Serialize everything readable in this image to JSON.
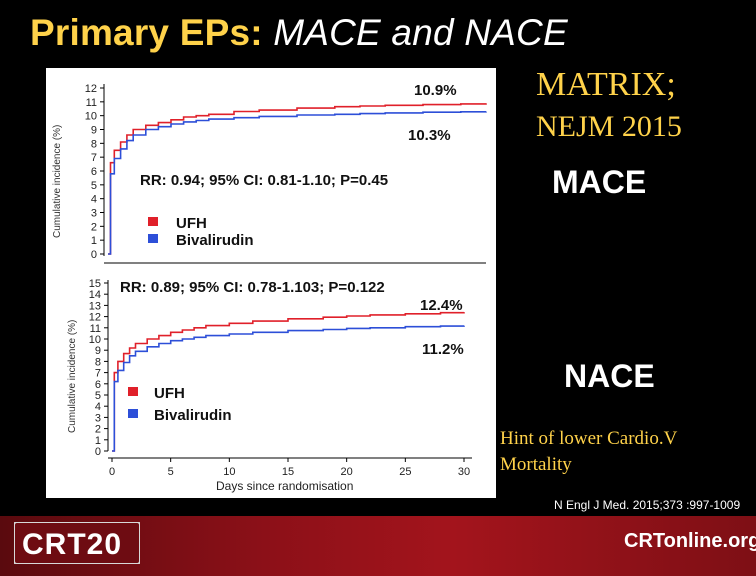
{
  "slide": {
    "title_bold": "Primary EPs:",
    "title_italic": "MACE and NACE",
    "right_top_line1": "MATRIX;",
    "right_top_line2": "NEJM 2015",
    "mace_label": "MACE",
    "nace_label": "NACE",
    "hint_line1": "Hint of lower Cardio.V",
    "hint_line2": "Mortality",
    "citation": "N Engl J Med. 2015;373 :997-1009",
    "footer_logo_left": "CRT20",
    "footer_logo_right": "CRTonline.org"
  },
  "colors": {
    "background": "#000000",
    "title_yellow": "#ffd24a",
    "ufh_red": "#e0202a",
    "bival_blue": "#2d4fd8",
    "footer_red": "#8c1018"
  },
  "chart_data": [
    {
      "type": "line",
      "name": "MACE",
      "ylabel": "Cumulative incidence (%)",
      "xlabel": "",
      "ylim": [
        0,
        12
      ],
      "yticks": [
        "0",
        "1",
        "2",
        "3",
        "4",
        "5",
        "6",
        "7",
        "8",
        "9",
        "10",
        "11",
        "12"
      ],
      "xlim": [
        0,
        30
      ],
      "stat_text": "RR: 0.94; 95% CI: 0.81-1.10; P=0.45",
      "legend": [
        "UFH",
        "Bivalirudin"
      ],
      "end_labels": [
        "10.9%",
        "10.3%"
      ],
      "series": [
        {
          "name": "UFH",
          "color": "#e0202a",
          "x": [
            0,
            0.2,
            0.5,
            1,
            1.5,
            2,
            3,
            4,
            5,
            6,
            7,
            8,
            10,
            12,
            15,
            18,
            20,
            22,
            25,
            28,
            30
          ],
          "y": [
            0,
            6.6,
            7.5,
            8.1,
            8.6,
            9.0,
            9.3,
            9.5,
            9.7,
            9.9,
            10.0,
            10.1,
            10.3,
            10.4,
            10.55,
            10.65,
            10.7,
            10.75,
            10.8,
            10.85,
            10.9
          ]
        },
        {
          "name": "Bivalirudin",
          "color": "#2d4fd8",
          "x": [
            0,
            0.2,
            0.5,
            1,
            1.5,
            2,
            3,
            4,
            5,
            6,
            7,
            8,
            10,
            12,
            15,
            18,
            20,
            22,
            25,
            28,
            30
          ],
          "y": [
            0,
            5.8,
            6.9,
            7.6,
            8.2,
            8.6,
            9.0,
            9.2,
            9.4,
            9.55,
            9.65,
            9.75,
            9.85,
            9.95,
            10.05,
            10.1,
            10.15,
            10.2,
            10.25,
            10.28,
            10.3
          ]
        }
      ]
    },
    {
      "type": "line",
      "name": "NACE",
      "ylabel": "Cumulative incidence (%)",
      "xlabel": "Days since randomisation",
      "ylim": [
        0,
        15
      ],
      "yticks": [
        "0",
        "1",
        "2",
        "3",
        "4",
        "5",
        "6",
        "7",
        "8",
        "9",
        "10",
        "11",
        "12",
        "13",
        "14",
        "15"
      ],
      "xlim": [
        0,
        30
      ],
      "xticks": [
        "0",
        "5",
        "10",
        "15",
        "20",
        "25",
        "30"
      ],
      "stat_text": "RR: 0.89; 95% CI: 0.78-1.103; P=0.122",
      "legend": [
        "UFH",
        "Bivalirudin"
      ],
      "end_labels": [
        "12.4%",
        "11.2%"
      ],
      "series": [
        {
          "name": "UFH",
          "color": "#e0202a",
          "x": [
            0,
            0.2,
            0.5,
            1,
            1.5,
            2,
            3,
            4,
            5,
            6,
            7,
            8,
            10,
            12,
            15,
            18,
            20,
            22,
            25,
            28,
            30
          ],
          "y": [
            0,
            7.0,
            8.0,
            8.7,
            9.2,
            9.6,
            10.0,
            10.3,
            10.6,
            10.8,
            11.0,
            11.2,
            11.4,
            11.6,
            11.8,
            11.95,
            12.05,
            12.15,
            12.25,
            12.35,
            12.4
          ]
        },
        {
          "name": "Bivalirudin",
          "color": "#2d4fd8",
          "x": [
            0,
            0.2,
            0.5,
            1,
            1.5,
            2,
            3,
            4,
            5,
            6,
            7,
            8,
            10,
            12,
            15,
            18,
            20,
            22,
            25,
            28,
            30
          ],
          "y": [
            0,
            6.2,
            7.2,
            7.9,
            8.5,
            8.9,
            9.3,
            9.6,
            9.85,
            10.0,
            10.15,
            10.3,
            10.45,
            10.6,
            10.75,
            10.85,
            10.95,
            11.0,
            11.1,
            11.15,
            11.2
          ]
        }
      ]
    }
  ]
}
